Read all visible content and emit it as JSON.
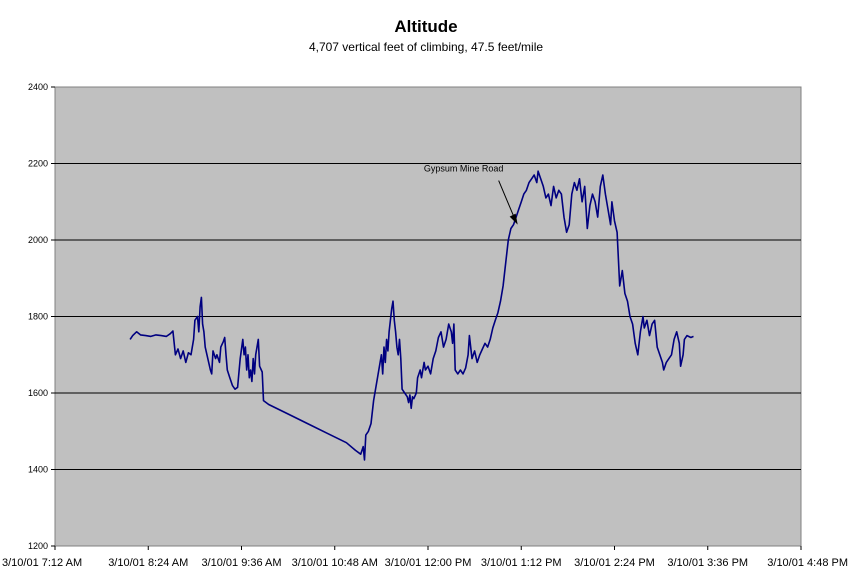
{
  "chart_data": {
    "type": "line",
    "title": "Altitude",
    "subtitle": "4,707 vertical feet of climbing, 47.5 feet/mile",
    "xlabel": "",
    "ylabel": "",
    "ylim": [
      1200,
      2400
    ],
    "yticks": [
      1200,
      1400,
      1600,
      1800,
      2000,
      2200,
      2400
    ],
    "xlim_minutes": [
      0,
      576
    ],
    "xtick_labels": [
      "3/10/01 7:12 AM",
      "3/10/01 8:24 AM",
      "3/10/01 9:36 AM",
      "3/10/01 10:48 AM",
      "3/10/01 12:00 PM",
      "3/10/01 1:12 PM",
      "3/10/01 2:24 PM",
      "3/10/01 3:36 PM",
      "3/10/01 4:48 PM"
    ],
    "grid": true,
    "background": "#c0c0c0",
    "line_color": "#000080",
    "annotation": {
      "text": "Gypsum Mine Road",
      "x": 358,
      "y": 2035
    },
    "series": [
      {
        "points": [
          [
            58,
            1740
          ],
          [
            60,
            1750
          ],
          [
            63,
            1760
          ],
          [
            66,
            1752
          ],
          [
            70,
            1750
          ],
          [
            74,
            1748
          ],
          [
            78,
            1752
          ],
          [
            82,
            1750
          ],
          [
            86,
            1748
          ],
          [
            89,
            1755
          ],
          [
            91,
            1762
          ],
          [
            93,
            1700
          ],
          [
            95,
            1715
          ],
          [
            97,
            1690
          ],
          [
            99,
            1710
          ],
          [
            101,
            1680
          ],
          [
            103,
            1705
          ],
          [
            105,
            1700
          ],
          [
            107,
            1740
          ],
          [
            108,
            1790
          ],
          [
            110,
            1800
          ],
          [
            111,
            1760
          ],
          [
            112,
            1825
          ],
          [
            113,
            1850
          ],
          [
            114,
            1780
          ],
          [
            115,
            1760
          ],
          [
            116,
            1720
          ],
          [
            118,
            1690
          ],
          [
            120,
            1660
          ],
          [
            121,
            1650
          ],
          [
            122,
            1710
          ],
          [
            124,
            1690
          ],
          [
            125,
            1700
          ],
          [
            127,
            1680
          ],
          [
            128,
            1720
          ],
          [
            130,
            1735
          ],
          [
            131,
            1745
          ],
          [
            132,
            1700
          ],
          [
            133,
            1660
          ],
          [
            135,
            1640
          ],
          [
            137,
            1620
          ],
          [
            139,
            1610
          ],
          [
            141,
            1615
          ],
          [
            143,
            1690
          ],
          [
            145,
            1740
          ],
          [
            146,
            1700
          ],
          [
            147,
            1720
          ],
          [
            148,
            1660
          ],
          [
            149,
            1700
          ],
          [
            150,
            1640
          ],
          [
            151,
            1660
          ],
          [
            152,
            1630
          ],
          [
            153,
            1690
          ],
          [
            154,
            1650
          ],
          [
            155,
            1700
          ],
          [
            156,
            1720
          ],
          [
            157,
            1740
          ],
          [
            158,
            1670
          ],
          [
            160,
            1655
          ],
          [
            161,
            1580
          ],
          [
            165,
            1570
          ],
          [
            180,
            1545
          ],
          [
            195,
            1520
          ],
          [
            210,
            1495
          ],
          [
            225,
            1470
          ],
          [
            232,
            1450
          ],
          [
            236,
            1440
          ],
          [
            238,
            1460
          ],
          [
            239,
            1425
          ],
          [
            240,
            1490
          ],
          [
            242,
            1500
          ],
          [
            244,
            1520
          ],
          [
            246,
            1580
          ],
          [
            248,
            1620
          ],
          [
            249,
            1640
          ],
          [
            251,
            1680
          ],
          [
            252,
            1700
          ],
          [
            253,
            1650
          ],
          [
            254,
            1720
          ],
          [
            255,
            1680
          ],
          [
            256,
            1740
          ],
          [
            257,
            1710
          ],
          [
            258,
            1760
          ],
          [
            259,
            1790
          ],
          [
            260,
            1820
          ],
          [
            261,
            1840
          ],
          [
            262,
            1790
          ],
          [
            263,
            1760
          ],
          [
            264,
            1720
          ],
          [
            265,
            1700
          ],
          [
            266,
            1740
          ],
          [
            267,
            1690
          ],
          [
            268,
            1610
          ],
          [
            270,
            1600
          ],
          [
            272,
            1590
          ],
          [
            273,
            1575
          ],
          [
            274,
            1595
          ],
          [
            275,
            1560
          ],
          [
            276,
            1590
          ],
          [
            277,
            1585
          ],
          [
            279,
            1600
          ],
          [
            280,
            1640
          ],
          [
            282,
            1660
          ],
          [
            283,
            1640
          ],
          [
            285,
            1680
          ],
          [
            286,
            1660
          ],
          [
            288,
            1670
          ],
          [
            290,
            1650
          ],
          [
            292,
            1690
          ],
          [
            294,
            1710
          ],
          [
            296,
            1745
          ],
          [
            298,
            1760
          ],
          [
            300,
            1720
          ],
          [
            302,
            1740
          ],
          [
            304,
            1780
          ],
          [
            306,
            1760
          ],
          [
            307,
            1730
          ],
          [
            308,
            1780
          ],
          [
            309,
            1660
          ],
          [
            311,
            1650
          ],
          [
            313,
            1660
          ],
          [
            315,
            1650
          ],
          [
            317,
            1665
          ],
          [
            319,
            1700
          ],
          [
            320,
            1750
          ],
          [
            321,
            1720
          ],
          [
            322,
            1690
          ],
          [
            324,
            1710
          ],
          [
            326,
            1680
          ],
          [
            328,
            1700
          ],
          [
            330,
            1715
          ],
          [
            332,
            1730
          ],
          [
            334,
            1720
          ],
          [
            336,
            1740
          ],
          [
            338,
            1770
          ],
          [
            340,
            1790
          ],
          [
            342,
            1810
          ],
          [
            344,
            1840
          ],
          [
            346,
            1880
          ],
          [
            348,
            1940
          ],
          [
            350,
            2000
          ],
          [
            352,
            2030
          ],
          [
            354,
            2040
          ],
          [
            356,
            2060
          ],
          [
            358,
            2080
          ],
          [
            360,
            2100
          ],
          [
            362,
            2120
          ],
          [
            364,
            2130
          ],
          [
            366,
            2150
          ],
          [
            368,
            2160
          ],
          [
            370,
            2170
          ],
          [
            372,
            2150
          ],
          [
            373,
            2180
          ],
          [
            375,
            2160
          ],
          [
            377,
            2140
          ],
          [
            379,
            2110
          ],
          [
            381,
            2120
          ],
          [
            383,
            2090
          ],
          [
            385,
            2140
          ],
          [
            387,
            2110
          ],
          [
            389,
            2130
          ],
          [
            391,
            2120
          ],
          [
            393,
            2060
          ],
          [
            395,
            2020
          ],
          [
            397,
            2040
          ],
          [
            399,
            2120
          ],
          [
            401,
            2150
          ],
          [
            403,
            2130
          ],
          [
            405,
            2160
          ],
          [
            407,
            2100
          ],
          [
            409,
            2140
          ],
          [
            411,
            2030
          ],
          [
            413,
            2090
          ],
          [
            415,
            2120
          ],
          [
            417,
            2100
          ],
          [
            419,
            2060
          ],
          [
            421,
            2140
          ],
          [
            423,
            2170
          ],
          [
            425,
            2120
          ],
          [
            427,
            2080
          ],
          [
            429,
            2040
          ],
          [
            430,
            2100
          ],
          [
            432,
            2050
          ],
          [
            434,
            2020
          ],
          [
            436,
            1880
          ],
          [
            438,
            1920
          ],
          [
            440,
            1860
          ],
          [
            442,
            1840
          ],
          [
            444,
            1800
          ],
          [
            446,
            1780
          ],
          [
            448,
            1730
          ],
          [
            450,
            1700
          ],
          [
            452,
            1760
          ],
          [
            454,
            1800
          ],
          [
            455,
            1770
          ],
          [
            457,
            1790
          ],
          [
            459,
            1750
          ],
          [
            461,
            1780
          ],
          [
            463,
            1790
          ],
          [
            465,
            1720
          ],
          [
            467,
            1700
          ],
          [
            469,
            1680
          ],
          [
            470,
            1660
          ],
          [
            472,
            1680
          ],
          [
            474,
            1690
          ],
          [
            476,
            1700
          ],
          [
            478,
            1740
          ],
          [
            480,
            1760
          ],
          [
            482,
            1730
          ],
          [
            483,
            1670
          ],
          [
            485,
            1700
          ],
          [
            486,
            1740
          ],
          [
            488,
            1750
          ],
          [
            491,
            1745
          ],
          [
            493,
            1748
          ]
        ]
      }
    ]
  }
}
